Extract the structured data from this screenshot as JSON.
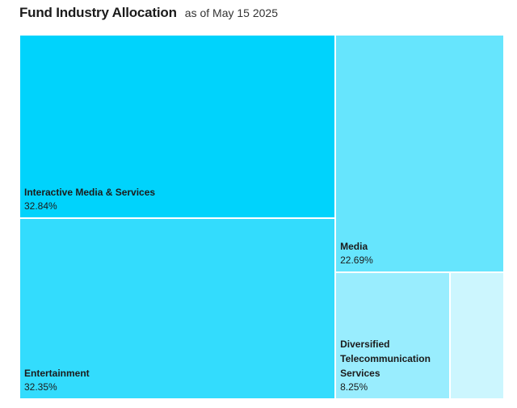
{
  "header": {
    "title": "Fund Industry Allocation",
    "subtitle": "as of May 15 2025"
  },
  "chart_data": {
    "type": "treemap",
    "title": "Fund Industry Allocation",
    "subtitle": "as of May 15 2025",
    "items": [
      {
        "name": "Interactive Media & Services",
        "value": 32.84,
        "label": "32.84%",
        "color": "#00d3fc"
      },
      {
        "name": "Entertainment",
        "value": 32.35,
        "label": "32.35%",
        "color": "#33dcfd"
      },
      {
        "name": "Media",
        "value": 22.69,
        "label": "22.69%",
        "color": "#66e5fd"
      },
      {
        "name": "Diversified\nTelecommunication\nServices",
        "value": 8.25,
        "label": "8.25%",
        "color": "#99edfe"
      },
      {
        "name": "",
        "value": 3.87,
        "label": "",
        "color": "#ccf6fe"
      }
    ]
  }
}
